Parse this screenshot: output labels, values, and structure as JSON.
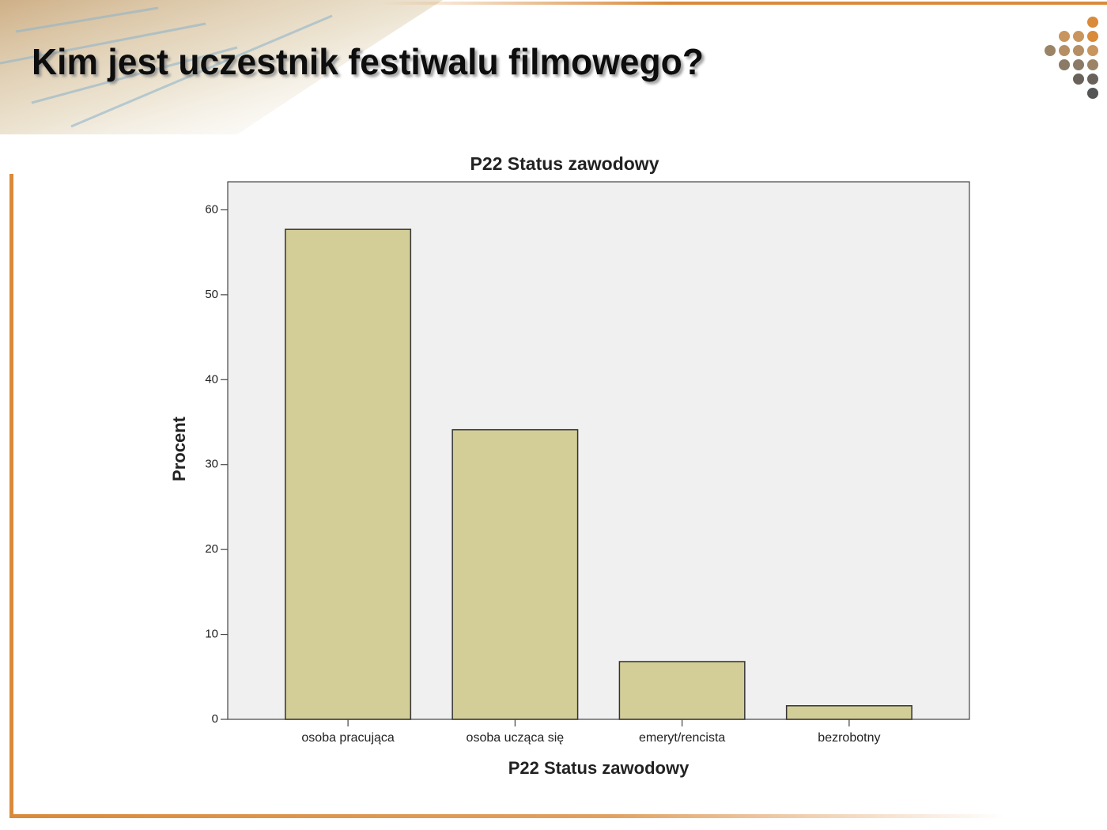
{
  "slide": {
    "title": "Kim jest uczestnik festiwalu filmowego?"
  },
  "chart_data": {
    "type": "bar",
    "title": "P22 Status zawodowy",
    "x_label": "P22 Status zawodowy",
    "y_label": "Procent",
    "categories": [
      "osoba pracująca",
      "osoba ucząca się",
      "emeryt/rencista",
      "bezrobotny"
    ],
    "values": [
      57.7,
      34.1,
      6.8,
      1.6
    ],
    "color": "#d3ce97",
    "ylim": [
      0,
      63.3
    ],
    "yticks": [
      0,
      10,
      20,
      30,
      40,
      50,
      60
    ],
    "grid": false
  }
}
